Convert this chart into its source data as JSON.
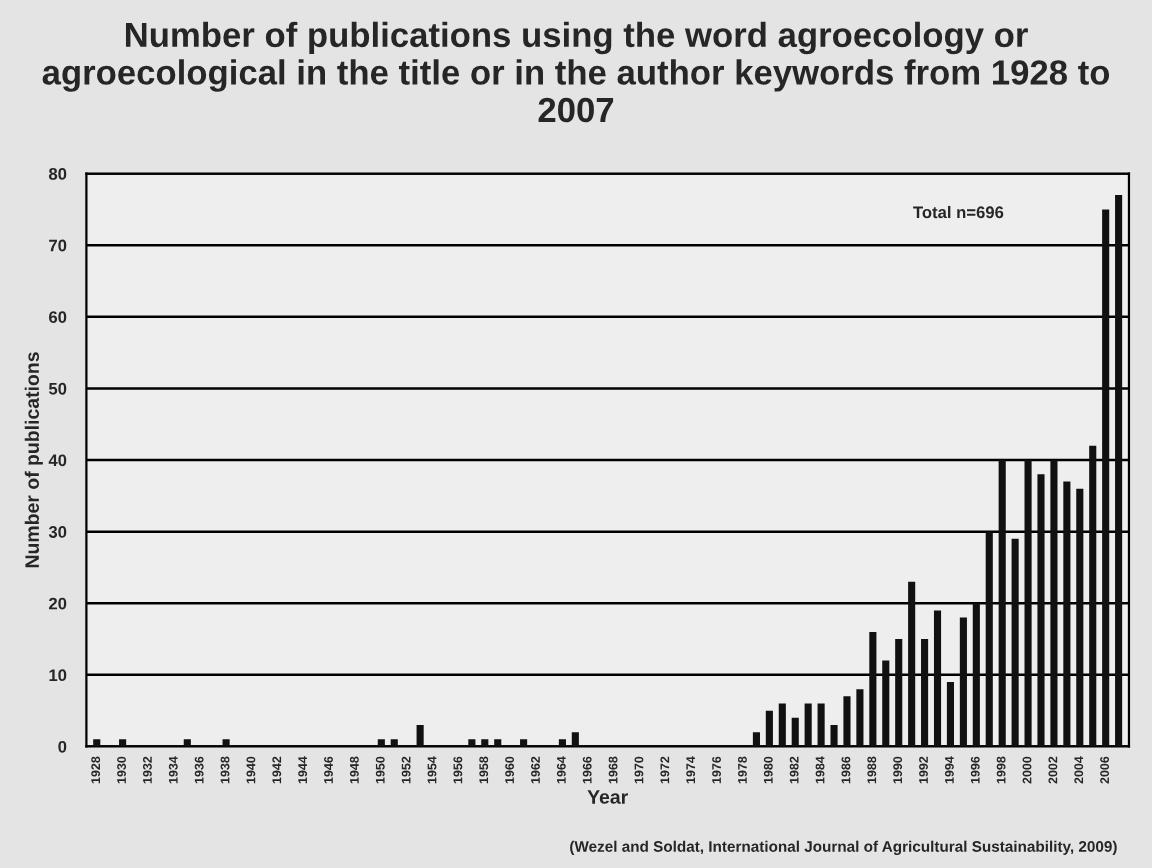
{
  "chart_data": {
    "type": "bar",
    "title": "Number of publications using the word agroecology or agroecological in the title or in the author keywords from 1928 to 2007",
    "xlabel": "Year",
    "ylabel": "Number of publications",
    "categories": [
      "1928",
      null,
      "1930",
      null,
      "1932",
      null,
      "1934",
      null,
      "1936",
      null,
      "1938",
      null,
      "1940",
      null,
      "1942",
      null,
      "1944",
      null,
      "1946",
      null,
      "1948",
      null,
      "1950",
      null,
      "1952",
      null,
      "1954",
      null,
      "1956",
      null,
      "1958",
      null,
      "1960",
      null,
      "1962",
      null,
      "1964",
      null,
      "1966",
      null,
      "1968",
      null,
      "1970",
      null,
      "1972",
      null,
      "1974",
      null,
      "1976",
      null,
      "1978",
      null,
      "1980",
      null,
      "1982",
      null,
      "1984",
      null,
      "1986",
      null,
      "1988",
      null,
      "1990",
      null,
      "1992",
      null,
      "1994",
      null,
      "1996",
      null,
      "1998",
      null,
      "2000",
      null,
      "2002",
      null,
      "2004",
      null,
      "2006",
      null
    ],
    "values": [
      1,
      0,
      1,
      0,
      0,
      0,
      0,
      1,
      0,
      0,
      1,
      0,
      0,
      0,
      0,
      0,
      0,
      0,
      0,
      0,
      0,
      0,
      1,
      1,
      0,
      3,
      0,
      0,
      0,
      1,
      1,
      1,
      0,
      1,
      0,
      0,
      1,
      2,
      0,
      0,
      0,
      0,
      0,
      0,
      0,
      0,
      0,
      0,
      0,
      0,
      0,
      2,
      5,
      6,
      4,
      6,
      6,
      3,
      7,
      8,
      16,
      12,
      15,
      23,
      15,
      19,
      9,
      18,
      20,
      30,
      40,
      29,
      40,
      38,
      40,
      37,
      36,
      42,
      75,
      77
    ],
    "color": "#111111",
    "ylim": [
      0,
      80
    ],
    "yticks": [
      0,
      10,
      20,
      30,
      40,
      50,
      60,
      70,
      80
    ],
    "grid": "y",
    "annotations": [
      "Total n=696",
      "(Wezel and Soldat, International Journal of Agricultural Sustainability, 2009)"
    ]
  }
}
